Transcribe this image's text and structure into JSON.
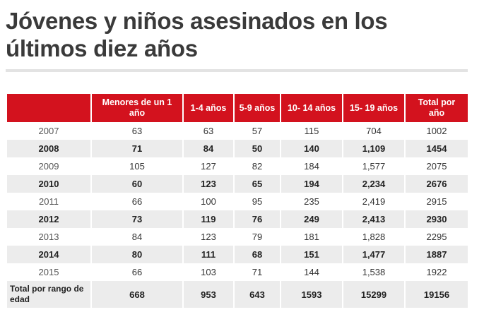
{
  "title": "Jóvenes y niños asesinados en los últimos diez años",
  "table": {
    "headers": [
      "",
      "Menores de un 1 año",
      "1-4 años",
      "5-9 años",
      "10- 14 años",
      "15- 19 años",
      "Total por año"
    ],
    "rows": [
      [
        "2007",
        "63",
        "63",
        "57",
        "115",
        "704",
        "1002"
      ],
      [
        "2008",
        "71",
        "84",
        "50",
        "140",
        "1,109",
        "1454"
      ],
      [
        "2009",
        "105",
        "127",
        "82",
        "184",
        "1,577",
        "2075"
      ],
      [
        "2010",
        "60",
        "123",
        "65",
        "194",
        "2,234",
        "2676"
      ],
      [
        "2011",
        "66",
        "100",
        "95",
        "235",
        "2,419",
        "2915"
      ],
      [
        "2012",
        "73",
        "119",
        "76",
        "249",
        "2,413",
        "2930"
      ],
      [
        "2013",
        "84",
        "123",
        "79",
        "181",
        "1,828",
        "2295"
      ],
      [
        "2014",
        "80",
        "111",
        "68",
        "151",
        "1,477",
        "1887"
      ],
      [
        "2015",
        "66",
        "103",
        "71",
        "144",
        "1,538",
        "1922"
      ]
    ],
    "total_row": [
      "Total por rango de edad",
      "668",
      "953",
      "643",
      "1593",
      "15299",
      "19156"
    ]
  },
  "colors": {
    "header_bg": "#d3121e",
    "header_text": "#ffffff",
    "stripe": "#ececec",
    "title": "#3a3a3a"
  }
}
